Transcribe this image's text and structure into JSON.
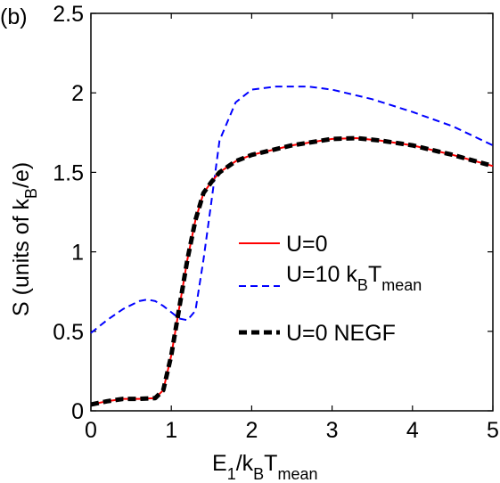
{
  "panel_label": "(b)",
  "chart_data": {
    "type": "line",
    "xlim": [
      0,
      5
    ],
    "ylim": [
      0,
      2.5
    ],
    "x_ticks": [
      "0",
      "1",
      "2",
      "3",
      "4",
      "5"
    ],
    "y_ticks": [
      "0",
      "0.5",
      "1",
      "1.5",
      "2",
      "2.5"
    ],
    "grid": false,
    "legend_position": "center-right",
    "xlabel": {
      "main": "E",
      "sub1": "1",
      "mid": "/k",
      "sub2": "B",
      "tail": "T",
      "sub3": "mean"
    },
    "ylabel": {
      "pre": "S (units of k",
      "sub": "B",
      "post": "/e)"
    },
    "series": [
      {
        "name": "U=0",
        "color": "#ff0000",
        "style": "solid",
        "legend": {
          "pre": "U=0"
        },
        "points": [
          [
            0,
            0.04
          ],
          [
            0.2,
            0.06
          ],
          [
            0.4,
            0.075
          ],
          [
            0.6,
            0.075
          ],
          [
            0.8,
            0.08
          ],
          [
            0.9,
            0.13
          ],
          [
            1.0,
            0.35
          ],
          [
            1.1,
            0.65
          ],
          [
            1.2,
            0.95
          ],
          [
            1.3,
            1.2
          ],
          [
            1.4,
            1.37
          ],
          [
            1.5,
            1.44
          ],
          [
            1.6,
            1.5
          ],
          [
            1.8,
            1.57
          ],
          [
            2.0,
            1.61
          ],
          [
            2.5,
            1.67
          ],
          [
            3.0,
            1.71
          ],
          [
            3.3,
            1.715
          ],
          [
            3.6,
            1.7
          ],
          [
            4.0,
            1.67
          ],
          [
            4.5,
            1.61
          ],
          [
            5.0,
            1.54
          ]
        ]
      },
      {
        "name": "U=10 kBTmean",
        "color": "#0000ff",
        "style": "dashed",
        "legend": {
          "pre": "U=10 k",
          "sub1": "B",
          "mid": "T",
          "sub2": "mean"
        },
        "points": [
          [
            0,
            0.49
          ],
          [
            0.2,
            0.57
          ],
          [
            0.4,
            0.64
          ],
          [
            0.6,
            0.69
          ],
          [
            0.7,
            0.7
          ],
          [
            0.8,
            0.69
          ],
          [
            0.9,
            0.66
          ],
          [
            1.0,
            0.62
          ],
          [
            1.1,
            0.58
          ],
          [
            1.2,
            0.57
          ],
          [
            1.3,
            0.63
          ],
          [
            1.4,
            0.95
          ],
          [
            1.5,
            1.32
          ],
          [
            1.6,
            1.7
          ],
          [
            1.8,
            1.94
          ],
          [
            2.0,
            2.02
          ],
          [
            2.3,
            2.04
          ],
          [
            2.7,
            2.04
          ],
          [
            3.0,
            2.02
          ],
          [
            3.5,
            1.96
          ],
          [
            4.0,
            1.88
          ],
          [
            4.5,
            1.79
          ],
          [
            5.0,
            1.67
          ]
        ]
      },
      {
        "name": "U=0 NEGF",
        "color": "#000000",
        "style": "dashed-bold",
        "legend": {
          "pre": "U=0 NEGF"
        },
        "points": [
          [
            0,
            0.04
          ],
          [
            0.2,
            0.06
          ],
          [
            0.4,
            0.075
          ],
          [
            0.6,
            0.075
          ],
          [
            0.8,
            0.08
          ],
          [
            0.9,
            0.13
          ],
          [
            1.0,
            0.35
          ],
          [
            1.1,
            0.65
          ],
          [
            1.2,
            0.95
          ],
          [
            1.3,
            1.2
          ],
          [
            1.4,
            1.37
          ],
          [
            1.5,
            1.44
          ],
          [
            1.6,
            1.5
          ],
          [
            1.8,
            1.57
          ],
          [
            2.0,
            1.61
          ],
          [
            2.5,
            1.67
          ],
          [
            3.0,
            1.71
          ],
          [
            3.3,
            1.715
          ],
          [
            3.6,
            1.7
          ],
          [
            4.0,
            1.67
          ],
          [
            4.5,
            1.61
          ],
          [
            5.0,
            1.54
          ]
        ]
      }
    ]
  }
}
